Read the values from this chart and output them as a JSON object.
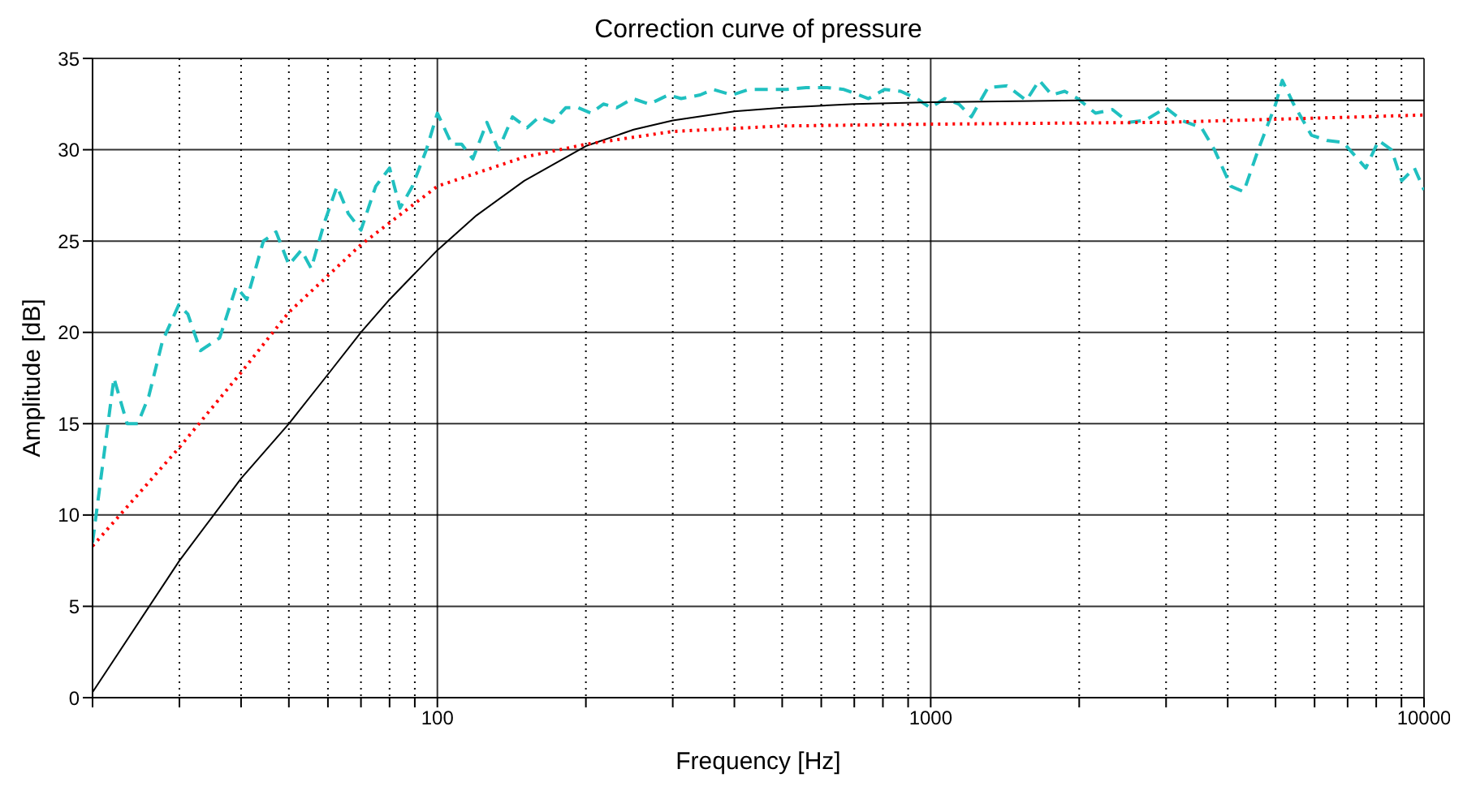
{
  "chart_data": {
    "type": "line",
    "title": "Correction curve of pressure",
    "xlabel": "Frequency [Hz]",
    "ylabel": "Amplitude [dB]",
    "log": "x",
    "grid": true,
    "marker": "none",
    "legend": false,
    "xlim": [
      20,
      10000
    ],
    "ylim": [
      0,
      35
    ],
    "yticks": [
      0,
      5,
      10,
      15,
      20,
      25,
      30,
      35
    ],
    "xticks": [
      {
        "value": 20,
        "label": null
      },
      {
        "value": 30,
        "label": null
      },
      {
        "value": 40,
        "label": null
      },
      {
        "value": 50,
        "label": null
      },
      {
        "value": 60,
        "label": null
      },
      {
        "value": 70,
        "label": null
      },
      {
        "value": 80,
        "label": null
      },
      {
        "value": 90,
        "label": null
      },
      100,
      {
        "value": 200,
        "label": null
      },
      {
        "value": 300,
        "label": null
      },
      {
        "value": 400,
        "label": null
      },
      {
        "value": 500,
        "label": null
      },
      {
        "value": 600,
        "label": null
      },
      {
        "value": 700,
        "label": null
      },
      {
        "value": 800,
        "label": null
      },
      {
        "value": 900,
        "label": null
      },
      1000,
      {
        "value": 2000,
        "label": null
      },
      {
        "value": 3000,
        "label": null
      },
      {
        "value": 4000,
        "label": null
      },
      {
        "value": 5000,
        "label": null
      },
      {
        "value": 6000,
        "label": null
      },
      {
        "value": 7000,
        "label": null
      },
      {
        "value": 8000,
        "label": null
      },
      {
        "value": 9000,
        "label": null
      },
      10000
    ],
    "series": [
      {
        "color": "#20c0c0",
        "line_style": "dashed",
        "x": [
          20,
          22.1,
          23.5,
          24.7,
          26,
          27.7,
          29.9,
          31.2,
          33.1,
          36.2,
          39.1,
          41.1,
          44.4,
          47.1,
          50,
          53,
          55.5,
          59,
          62.6,
          66,
          70,
          75,
          80,
          84,
          89,
          95,
          100,
          107,
          112,
          118,
          126,
          133,
          142,
          152,
          161,
          171,
          182,
          193,
          205,
          217,
          231,
          249,
          269,
          294,
          312,
          341,
          362,
          396,
          428,
          472,
          510,
          559,
          617,
          667,
          748,
          806,
          869,
          938,
          998,
          1068,
          1141,
          1209,
          1306,
          1428,
          1563,
          1660,
          1760,
          1869,
          1986,
          2158,
          2335,
          2520,
          2718,
          2997,
          3232,
          3540,
          3760,
          4060,
          4310,
          4613,
          5003,
          5160,
          5440,
          5910,
          6370,
          6860,
          7620,
          8090,
          8590,
          9010,
          9560,
          10000
        ],
        "values": [
          8.5,
          17.5,
          15,
          15,
          16.5,
          19.5,
          21.5,
          21,
          19,
          19.7,
          22.5,
          21.8,
          25,
          25.5,
          23.7,
          24.5,
          23.5,
          26,
          28,
          26.5,
          25.6,
          28,
          29,
          26.8,
          28,
          30,
          32,
          30.3,
          30.3,
          29.5,
          31.5,
          30,
          31.8,
          31.2,
          31.8,
          31.5,
          32.3,
          32.3,
          32,
          32.5,
          32.3,
          32.8,
          32.5,
          33,
          32.8,
          33,
          33.3,
          33,
          33.3,
          33.3,
          33.3,
          33.4,
          33.4,
          33.3,
          32.8,
          33.3,
          33.2,
          32.8,
          32.3,
          32.8,
          32.5,
          31.8,
          33.4,
          33.5,
          32.7,
          33.8,
          33,
          33.2,
          32.8,
          32,
          32.2,
          31.5,
          31.6,
          32.3,
          31.6,
          31.2,
          30,
          28,
          27.7,
          30,
          32.5,
          33.8,
          32.5,
          30.8,
          30.5,
          30.4,
          29,
          30.5,
          30,
          28.3,
          29,
          27.8
        ]
      },
      {
        "color": "#000000",
        "line_style": "solid",
        "x": [
          20,
          30,
          40,
          50,
          60,
          70,
          80,
          100,
          120,
          150,
          200,
          250,
          300,
          400,
          500,
          700,
          1000,
          2000,
          10000
        ],
        "values": [
          0.3,
          7.5,
          12,
          15,
          17.7,
          20,
          21.8,
          24.5,
          26.4,
          28.3,
          30.2,
          31.1,
          31.6,
          32.1,
          32.3,
          32.5,
          32.6,
          32.7,
          32.7
        ]
      },
      {
        "color": "#ff0000",
        "line_style": "dotted",
        "x": [
          20,
          30,
          40,
          50,
          70,
          100,
          150,
          200,
          300,
          500,
          1000,
          3000,
          10000
        ],
        "values": [
          8.3,
          13.7,
          17.8,
          21.1,
          24.8,
          28,
          29.6,
          30.3,
          31,
          31.3,
          31.4,
          31.5,
          31.9
        ]
      }
    ]
  }
}
